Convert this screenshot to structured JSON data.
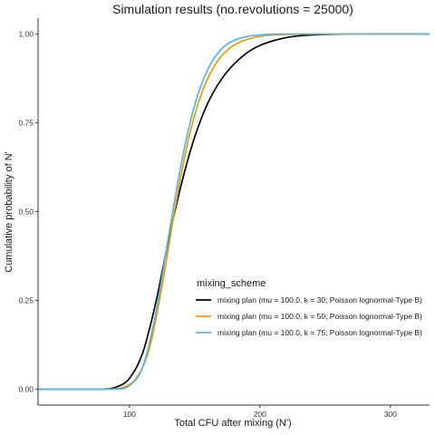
{
  "chart_data": {
    "type": "line",
    "title": "Simulation results (no.revolutions = 25000)",
    "xlabel": "Total CFU after mixing (N')",
    "ylabel": "Cumulative probability of N'",
    "xlim": [
      30,
      330
    ],
    "ylim": [
      -0.045,
      1.045
    ],
    "x_ticks": [
      100,
      200,
      300
    ],
    "x_tick_labels": [
      "100",
      "200",
      "300"
    ],
    "y_ticks": [
      0,
      0.25,
      0.5,
      0.75,
      1.0
    ],
    "y_tick_labels": [
      "0.00",
      "0.25",
      "0.50",
      "0.75",
      "1.00"
    ],
    "grid": false,
    "legend": {
      "title": "mixing_scheme",
      "position": "inside-bottom-right"
    },
    "series": [
      {
        "name": "mixing plan (mu = 100.0, k = 30; Poisson lognormal-Type B)",
        "color": "#000000",
        "x": [
          30,
          80,
          90,
          100,
          110,
          120,
          130,
          140,
          150,
          160,
          170,
          180,
          190,
          200,
          210,
          220,
          230,
          250,
          280,
          330
        ],
        "y": [
          0.0,
          0.0,
          0.006,
          0.03,
          0.1,
          0.24,
          0.42,
          0.58,
          0.71,
          0.805,
          0.87,
          0.915,
          0.947,
          0.968,
          0.981,
          0.99,
          0.995,
          0.999,
          1.0,
          1.0
        ]
      },
      {
        "name": "mixing plan (mu = 100.0, k = 50; Poisson lognormal-Type B)",
        "color": "#E69F00",
        "x": [
          30,
          85,
          95,
          105,
          115,
          125,
          135,
          145,
          155,
          165,
          175,
          185,
          195,
          205,
          215,
          230,
          250,
          330
        ],
        "y": [
          0.0,
          0.0,
          0.005,
          0.03,
          0.11,
          0.29,
          0.51,
          0.7,
          0.83,
          0.91,
          0.955,
          0.978,
          0.99,
          0.996,
          0.998,
          1.0,
          1.0,
          1.0
        ]
      },
      {
        "name": "mixing plan (mu = 100.0, k = 75; Poisson lognormal-Type B)",
        "color": "#56B4E9",
        "x": [
          30,
          90,
          100,
          110,
          120,
          130,
          140,
          150,
          160,
          170,
          180,
          190,
          200,
          215,
          230,
          330
        ],
        "y": [
          0.0,
          0.0,
          0.01,
          0.06,
          0.21,
          0.43,
          0.64,
          0.8,
          0.9,
          0.956,
          0.982,
          0.993,
          0.998,
          1.0,
          1.0,
          1.0
        ]
      }
    ]
  }
}
